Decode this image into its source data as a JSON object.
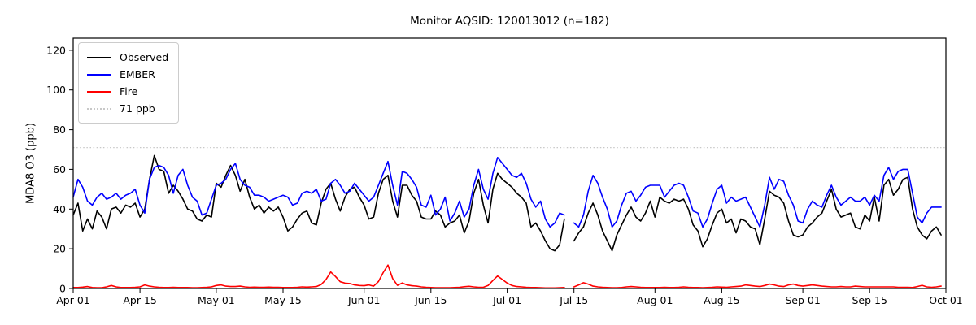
{
  "title": "Monitor AQSID: 120013012 (n=182)",
  "colors": {
    "observed": "#000000",
    "ember": "#0000ff",
    "fire": "#ff0000",
    "threshold": "#c8c8c8",
    "axis": "#000000",
    "background": "#ffffff"
  },
  "chart_data": {
    "type": "line",
    "title": "Monitor AQSID: 120013012 (n=182)",
    "xlabel": "",
    "ylabel": "MDA8 O3 (ppb)",
    "ylim": [
      0,
      126.1
    ],
    "grid": false,
    "legend_position": "upper-left",
    "x_start": "Apr 01",
    "x_end": "Oct 01",
    "x_days_total": 183,
    "x_tick_days": [
      0,
      14,
      30,
      44,
      61,
      75,
      91,
      105,
      122,
      136,
      153,
      167,
      183
    ],
    "x_tick_labels": [
      "Apr 01",
      "Apr 15",
      "May 01",
      "May 15",
      "Jun 01",
      "Jun 15",
      "Jul 01",
      "Jul 15",
      "Aug 01",
      "Aug 15",
      "Sep 01",
      "Sep 15",
      "Oct 01"
    ],
    "y_ticks": [
      0,
      20,
      40,
      60,
      80,
      100,
      120
    ],
    "threshold": {
      "label": "71 ppb",
      "value": 71,
      "color": "#c8c8c8",
      "style": "dotted"
    },
    "missing_day_note": "one missing day (Jul 14) creates the line gap; n=182 of 183 days",
    "legend": [
      {
        "label": "Observed",
        "color": "#000000",
        "dash": "solid"
      },
      {
        "label": "EMBER",
        "color": "#0000ff",
        "dash": "solid"
      },
      {
        "label": "Fire",
        "color": "#ff0000",
        "dash": "solid"
      },
      {
        "label": "71 ppb",
        "color": "#c8c8c8",
        "dash": "dotted"
      }
    ],
    "series": [
      {
        "name": "Observed",
        "color": "#000000",
        "values": [
          37,
          43,
          29,
          35,
          30,
          39,
          36,
          30,
          40,
          41,
          38,
          42,
          41,
          43,
          36,
          40,
          55,
          67,
          60,
          59,
          48,
          52,
          49,
          45,
          40,
          39,
          35,
          34,
          37,
          36,
          53,
          51,
          57,
          62,
          57,
          49,
          55,
          46,
          40,
          42,
          38,
          41,
          39,
          41,
          36,
          29,
          31,
          35,
          38,
          39,
          33,
          32,
          43,
          50,
          53,
          45,
          39,
          46,
          50,
          51,
          46,
          42,
          35,
          36,
          48,
          55,
          57,
          44,
          36,
          52,
          52,
          47,
          44,
          36,
          35,
          35,
          39,
          37,
          31,
          33,
          34,
          37,
          28,
          34,
          48,
          55,
          42,
          33,
          50,
          58,
          55,
          53,
          51,
          48,
          46,
          43,
          31,
          33,
          29,
          24,
          20,
          19,
          22,
          35,
          null,
          24,
          28,
          31,
          38,
          43,
          37,
          29,
          24,
          19,
          27,
          32,
          37,
          41,
          36,
          34,
          38,
          44,
          36,
          46,
          44,
          43,
          45,
          44,
          45,
          40,
          32,
          29,
          21,
          25,
          32,
          38,
          40,
          33,
          35,
          28,
          35,
          34,
          31,
          30,
          22,
          35,
          49,
          47,
          46,
          43,
          34,
          27,
          26,
          27,
          31,
          33,
          36,
          38,
          44,
          50,
          40,
          36,
          37,
          38,
          31,
          30,
          37,
          34,
          46,
          34,
          52,
          55,
          47,
          50,
          55,
          56,
          40,
          31,
          27,
          25,
          29,
          31,
          27
        ]
      },
      {
        "name": "EMBER",
        "color": "#0000ff",
        "values": [
          46,
          55,
          51,
          44,
          42,
          46,
          48,
          45,
          46,
          48,
          45,
          47,
          48,
          50,
          42,
          38,
          55,
          61,
          62,
          61,
          57,
          48,
          57,
          60,
          52,
          46,
          44,
          37,
          38,
          45,
          52,
          53,
          55,
          60,
          63,
          55,
          52,
          51,
          47,
          47,
          46,
          44,
          45,
          46,
          47,
          46,
          42,
          43,
          48,
          49,
          48,
          50,
          44,
          45,
          53,
          55,
          52,
          48,
          49,
          53,
          50,
          47,
          44,
          46,
          52,
          58,
          64,
          52,
          42,
          59,
          58,
          55,
          51,
          42,
          41,
          47,
          37,
          40,
          46,
          34,
          38,
          44,
          36,
          40,
          52,
          60,
          50,
          45,
          58,
          66,
          63,
          60,
          57,
          56,
          58,
          53,
          45,
          41,
          44,
          35,
          31,
          33,
          38,
          37,
          null,
          33,
          31,
          37,
          49,
          57,
          53,
          46,
          40,
          31,
          34,
          42,
          48,
          49,
          44,
          47,
          51,
          52,
          52,
          52,
          46,
          49,
          52,
          53,
          52,
          46,
          39,
          38,
          31,
          35,
          43,
          50,
          52,
          43,
          46,
          44,
          45,
          46,
          41,
          36,
          31,
          42,
          56,
          50,
          55,
          54,
          47,
          42,
          34,
          33,
          40,
          44,
          42,
          41,
          47,
          52,
          46,
          42,
          44,
          46,
          44,
          44,
          46,
          42,
          47,
          44,
          57,
          61,
          55,
          59,
          60,
          60,
          48,
          36,
          33,
          38,
          41,
          41,
          41
        ]
      },
      {
        "name": "Fire",
        "color": "#ff0000",
        "values": [
          0.5,
          0.5,
          0.7,
          1.0,
          0.5,
          0.4,
          0.4,
          0.8,
          1.5,
          0.8,
          0.5,
          0.5,
          0.5,
          0.6,
          0.8,
          1.8,
          1.2,
          0.8,
          0.6,
          0.5,
          0.5,
          0.6,
          0.5,
          0.5,
          0.5,
          0.4,
          0.4,
          0.5,
          0.6,
          0.8,
          1.5,
          1.8,
          1.2,
          1.0,
          1.0,
          1.2,
          0.8,
          0.6,
          0.7,
          0.6,
          0.6,
          0.7,
          0.6,
          0.6,
          0.5,
          0.5,
          0.5,
          0.6,
          0.8,
          0.7,
          0.8,
          1.0,
          2.0,
          4.5,
          8.3,
          6.0,
          3.4,
          2.7,
          2.5,
          1.8,
          1.5,
          1.4,
          1.8,
          1.2,
          3.5,
          8.0,
          11.8,
          5.0,
          1.6,
          2.8,
          1.8,
          1.4,
          1.2,
          0.8,
          0.6,
          0.5,
          0.4,
          0.4,
          0.4,
          0.4,
          0.5,
          0.6,
          0.9,
          1.1,
          0.8,
          0.6,
          0.6,
          1.5,
          4.0,
          6.3,
          4.5,
          2.7,
          1.5,
          1.0,
          0.8,
          0.6,
          0.5,
          0.5,
          0.4,
          0.3,
          0.3,
          0.3,
          0.4,
          0.5,
          null,
          0.8,
          1.8,
          2.9,
          2.2,
          1.2,
          0.8,
          0.6,
          0.5,
          0.4,
          0.4,
          0.5,
          0.8,
          1.0,
          0.8,
          0.6,
          0.5,
          0.5,
          0.5,
          0.5,
          0.6,
          0.5,
          0.5,
          0.6,
          0.8,
          0.6,
          0.5,
          0.5,
          0.4,
          0.5,
          0.6,
          0.8,
          0.7,
          0.6,
          0.8,
          1.0,
          1.2,
          1.8,
          1.5,
          1.2,
          1.0,
          1.5,
          2.2,
          1.8,
          1.2,
          1.0,
          1.8,
          2.2,
          1.5,
          1.2,
          1.5,
          1.8,
          1.5,
          1.2,
          1.0,
          0.8,
          0.8,
          1.0,
          0.8,
          0.8,
          1.2,
          1.0,
          0.8,
          0.8,
          0.8,
          0.8,
          0.8,
          0.8,
          0.8,
          0.6,
          0.6,
          0.6,
          0.5,
          1.0,
          1.6,
          0.8,
          0.6,
          0.8,
          1.2
        ]
      }
    ]
  }
}
